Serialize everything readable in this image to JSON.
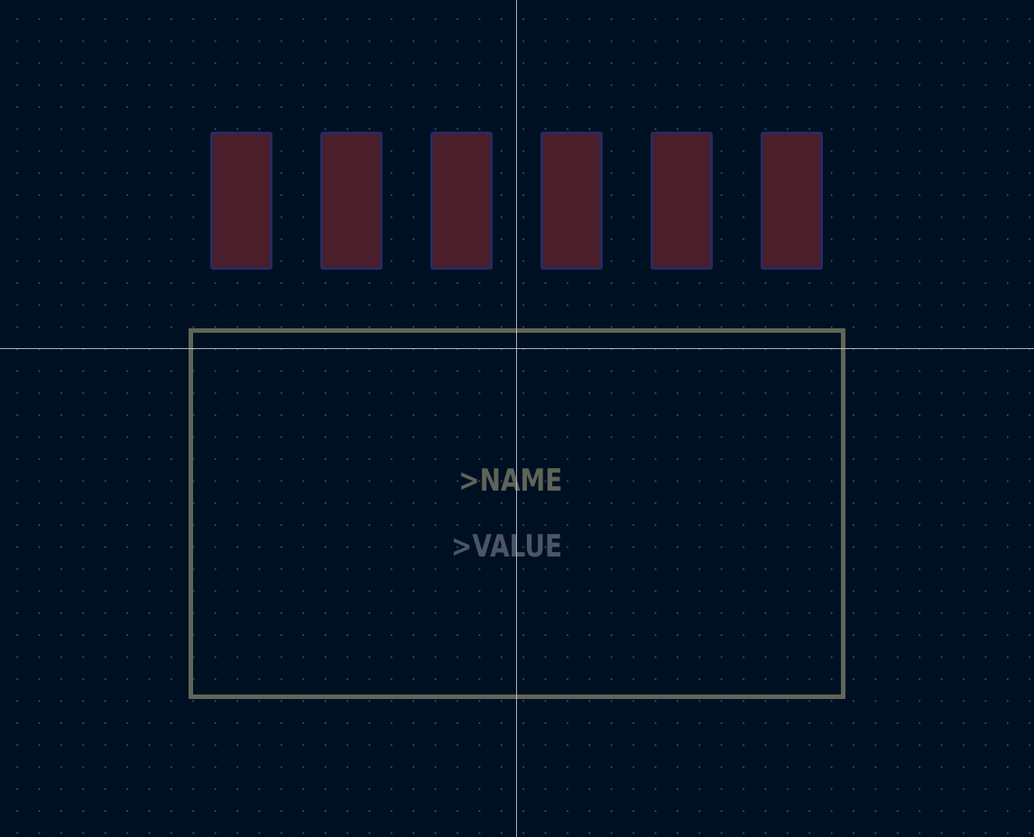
{
  "footprint_editor": {
    "pads": [
      {
        "id": "pad-1"
      },
      {
        "id": "pad-2"
      },
      {
        "id": "pad-3"
      },
      {
        "id": "pad-4"
      },
      {
        "id": "pad-5"
      },
      {
        "id": "pad-6"
      }
    ],
    "reference_text": ">NAME",
    "value_text": ">VALUE"
  },
  "colors": {
    "background": "#001023",
    "grid_dot": "#78829a",
    "pad_fill": "#4a1e2a",
    "pad_outline": "#2a2a60",
    "courtyard_outline": "#5f6658",
    "reference_text": "#5d6458",
    "value_text": "#4b5566",
    "crosshair": "#c8ccd2"
  }
}
